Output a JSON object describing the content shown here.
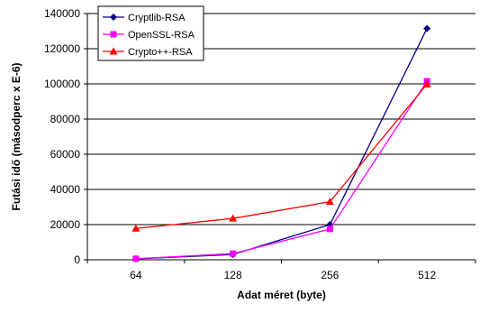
{
  "chart_data": {
    "type": "line",
    "categories": [
      "64",
      "128",
      "256",
      "512"
    ],
    "series": [
      {
        "name": "Cryptlib-RSA",
        "values": [
          500,
          3000,
          20000,
          131500
        ],
        "color": "#000080",
        "marker": "diamond"
      },
      {
        "name": "OpenSSL-RSA",
        "values": [
          600,
          3500,
          17500,
          101500
        ],
        "color": "#ff00ff",
        "marker": "square"
      },
      {
        "name": "Crypto++-RSA",
        "values": [
          17800,
          23500,
          33000,
          99800
        ],
        "color": "#ff0000",
        "marker": "triangle"
      }
    ],
    "xlabel": "Adat méret (byte)",
    "ylabel": "Futási idő (másodperc x E-6)",
    "ylim": [
      0,
      140000
    ],
    "yticks": [
      "0",
      "20000",
      "40000",
      "60000",
      "80000",
      "100000",
      "120000",
      "140000"
    ],
    "grid": true,
    "legend_position": "top-left"
  }
}
